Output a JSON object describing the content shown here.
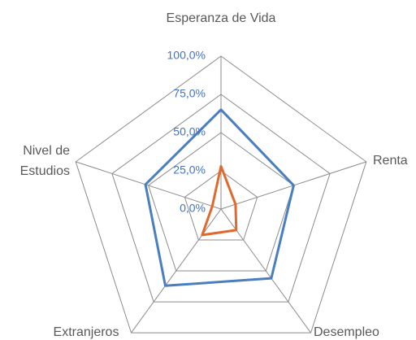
{
  "chart_data": {
    "type": "radar",
    "categories": [
      "Esperanza de Vida",
      "Renta",
      "Desempleo",
      "Extranjeros",
      "Nivel de Estudios"
    ],
    "series": [
      {
        "color": "#4a7ebf",
        "values": [
          65,
          50,
          56,
          62,
          52
        ]
      },
      {
        "color": "#e2692c",
        "values": [
          28,
          10,
          17,
          21,
          6
        ]
      }
    ],
    "ylim": [
      0,
      100
    ],
    "yticks": [
      {
        "value": 0,
        "label": "0,0%"
      },
      {
        "value": 25,
        "label": "25,0%"
      },
      {
        "value": 50,
        "label": "50,0%"
      },
      {
        "value": 75,
        "label": "75,0%"
      },
      {
        "value": 100,
        "label": "100,0%"
      }
    ],
    "grid": true
  }
}
